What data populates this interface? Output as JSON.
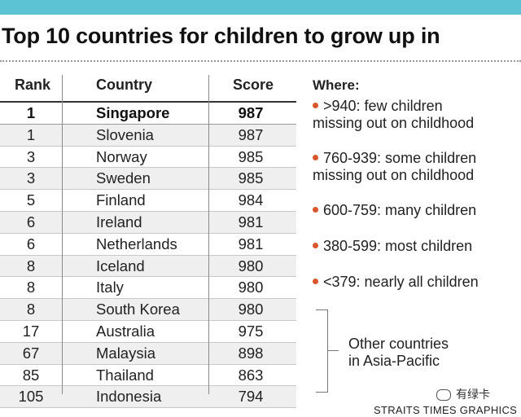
{
  "title": "Top 10 countries for children to grow up in",
  "chart_data": {
    "type": "table",
    "title": "Top 10 countries for children to grow up in",
    "columns": [
      "Rank",
      "Country",
      "Score"
    ],
    "rows": [
      {
        "rank": "1",
        "country": "Singapore",
        "score": 987
      },
      {
        "rank": "1",
        "country": "Slovenia",
        "score": 987
      },
      {
        "rank": "3",
        "country": "Norway",
        "score": 985
      },
      {
        "rank": "3",
        "country": "Sweden",
        "score": 985
      },
      {
        "rank": "5",
        "country": "Finland",
        "score": 984
      },
      {
        "rank": "6",
        "country": "Ireland",
        "score": 981
      },
      {
        "rank": "6",
        "country": "Netherlands",
        "score": 981
      },
      {
        "rank": "8",
        "country": "Iceland",
        "score": 980
      },
      {
        "rank": "8",
        "country": "Italy",
        "score": 980
      },
      {
        "rank": "8",
        "country": "South Korea",
        "score": 980
      },
      {
        "rank": "17",
        "country": "Australia",
        "score": 975
      },
      {
        "rank": "67",
        "country": "Malaysia",
        "score": 898
      },
      {
        "rank": "85",
        "country": "Thailand",
        "score": 863
      },
      {
        "rank": "105",
        "country": "Indonesia",
        "score": 794
      }
    ],
    "highlighted_row": "Singapore"
  },
  "legend": {
    "title": "Where:",
    "items": [
      {
        "line1": ">940: few children",
        "line2": "missing out on childhood"
      },
      {
        "line1": "760-939: some children",
        "line2": "missing out on childhood"
      },
      {
        "line1": "600-759: many children",
        "line2": ""
      },
      {
        "line1": "380-599: most children",
        "line2": ""
      },
      {
        "line1": "<379: nearly all children",
        "line2": ""
      }
    ],
    "bullet_color": "#d9572b"
  },
  "other_countries": {
    "line1": "Other countries",
    "line2": "in Asia-Pacific"
  },
  "watermark": "有绿卡",
  "credit": "STRAITS TIMES GRAPHICS",
  "colors": {
    "top_bar": "#5bc3d4",
    "row_alt": "#efefef"
  }
}
